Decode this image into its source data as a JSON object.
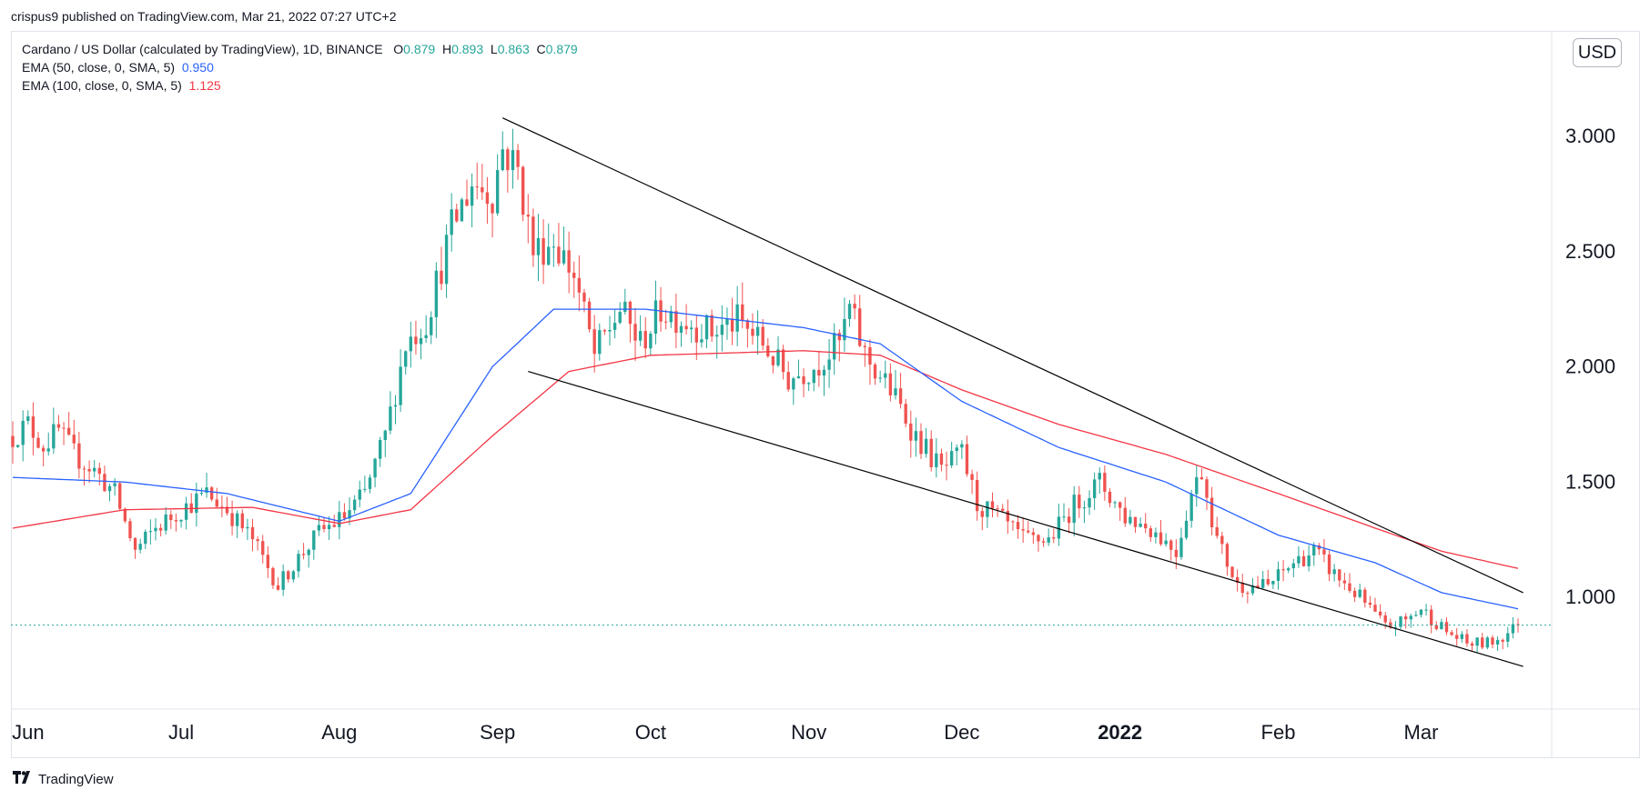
{
  "publish_line": "crispus9 published on TradingView.com, Mar 21, 2022 07:27 UTC+2",
  "legend": {
    "symbol": "Cardano / US Dollar (calculated by TradingView), 1D, BINANCE",
    "o_label": "O",
    "o_value": "0.879",
    "h_label": "H",
    "h_value": "0.893",
    "l_label": "L",
    "l_value": "0.863",
    "c_label": "C",
    "c_value": "0.879",
    "ema50_label": "EMA (50, close, 0, SMA, 5)",
    "ema50_value": "0.950",
    "ema100_label": "EMA (100, close, 0, SMA, 5)",
    "ema100_value": "1.125"
  },
  "currency_badge": "USD",
  "footer_brand": "TradingView",
  "colors": {
    "up": "#26a69a",
    "down": "#ef5350",
    "ema50": "#2962ff",
    "ema100": "#f23645",
    "trendline": "#000000",
    "last_price": "#26a69a"
  },
  "chart_data": {
    "type": "candlestick",
    "y_ticks": [
      "3.000",
      "2.500",
      "2.000",
      "1.500",
      "1.000"
    ],
    "y_tick_values": [
      3.0,
      2.5,
      2.0,
      1.5,
      1.0
    ],
    "ylim": [
      0.62,
      3.5
    ],
    "x_labels": [
      "Jun",
      "Jul",
      "Aug",
      "Sep",
      "Oct",
      "Nov",
      "Dec",
      "2022",
      "Feb",
      "Mar"
    ],
    "x_label_dates": [
      "2021-06-01",
      "2021-07-01",
      "2021-08-01",
      "2021-09-01",
      "2021-10-01",
      "2021-11-01",
      "2021-12-01",
      "2022-01-01",
      "2022-02-01",
      "2022-03-01"
    ],
    "bold_x_labels": [
      "2022"
    ],
    "date_range": [
      "2021-05-29",
      "2022-03-20"
    ],
    "last_price": 0.879,
    "close_anchors": [
      [
        "2021-05-29",
        1.7
      ],
      [
        "2021-06-01",
        1.75
      ],
      [
        "2021-06-04",
        1.66
      ],
      [
        "2021-06-07",
        1.72
      ],
      [
        "2021-06-10",
        1.62
      ],
      [
        "2021-06-14",
        1.55
      ],
      [
        "2021-06-18",
        1.45
      ],
      [
        "2021-06-22",
        1.2
      ],
      [
        "2021-06-26",
        1.3
      ],
      [
        "2021-07-01",
        1.38
      ],
      [
        "2021-07-06",
        1.45
      ],
      [
        "2021-07-10",
        1.38
      ],
      [
        "2021-07-15",
        1.25
      ],
      [
        "2021-07-20",
        1.05
      ],
      [
        "2021-07-24",
        1.17
      ],
      [
        "2021-07-28",
        1.28
      ],
      [
        "2021-08-02",
        1.35
      ],
      [
        "2021-08-06",
        1.45
      ],
      [
        "2021-08-10",
        1.7
      ],
      [
        "2021-08-14",
        2.1
      ],
      [
        "2021-08-18",
        2.2
      ],
      [
        "2021-08-23",
        2.6
      ],
      [
        "2021-08-27",
        2.8
      ],
      [
        "2021-08-31",
        2.75
      ],
      [
        "2021-09-02",
        2.95
      ],
      [
        "2021-09-05",
        2.85
      ],
      [
        "2021-09-08",
        2.5
      ],
      [
        "2021-09-12",
        2.55
      ],
      [
        "2021-09-16",
        2.4
      ],
      [
        "2021-09-20",
        2.05
      ],
      [
        "2021-09-25",
        2.25
      ],
      [
        "2021-09-29",
        2.1
      ],
      [
        "2021-10-03",
        2.25
      ],
      [
        "2021-10-08",
        2.2
      ],
      [
        "2021-10-13",
        2.15
      ],
      [
        "2021-10-18",
        2.2
      ],
      [
        "2021-10-23",
        2.1
      ],
      [
        "2021-10-28",
        1.95
      ],
      [
        "2021-11-02",
        2.0
      ],
      [
        "2021-11-07",
        2.1
      ],
      [
        "2021-11-09",
        2.25
      ],
      [
        "2021-11-12",
        2.05
      ],
      [
        "2021-11-17",
        1.9
      ],
      [
        "2021-11-22",
        1.7
      ],
      [
        "2021-11-27",
        1.55
      ],
      [
        "2021-12-01",
        1.62
      ],
      [
        "2021-12-04",
        1.4
      ],
      [
        "2021-12-08",
        1.35
      ],
      [
        "2021-12-13",
        1.25
      ],
      [
        "2021-12-18",
        1.25
      ],
      [
        "2021-12-23",
        1.4
      ],
      [
        "2021-12-28",
        1.5
      ],
      [
        "2022-01-02",
        1.35
      ],
      [
        "2022-01-07",
        1.3
      ],
      [
        "2022-01-12",
        1.2
      ],
      [
        "2022-01-15",
        1.45
      ],
      [
        "2022-01-17",
        1.55
      ],
      [
        "2022-01-20",
        1.25
      ],
      [
        "2022-01-24",
        1.05
      ],
      [
        "2022-01-30",
        1.05
      ],
      [
        "2022-02-04",
        1.15
      ],
      [
        "2022-02-08",
        1.2
      ],
      [
        "2022-02-12",
        1.1
      ],
      [
        "2022-02-17",
        1.0
      ],
      [
        "2022-02-22",
        0.87
      ],
      [
        "2022-02-26",
        0.9
      ],
      [
        "2022-03-01",
        0.95
      ],
      [
        "2022-03-06",
        0.85
      ],
      [
        "2022-03-10",
        0.8
      ],
      [
        "2022-03-14",
        0.8
      ],
      [
        "2022-03-17",
        0.83
      ],
      [
        "2022-03-20",
        0.879
      ]
    ],
    "ema50_anchors": [
      [
        "2021-05-29",
        1.52
      ],
      [
        "2021-06-20",
        1.5
      ],
      [
        "2021-07-10",
        1.45
      ],
      [
        "2021-08-01",
        1.33
      ],
      [
        "2021-08-15",
        1.45
      ],
      [
        "2021-08-31",
        2.0
      ],
      [
        "2021-09-12",
        2.25
      ],
      [
        "2021-09-30",
        2.25
      ],
      [
        "2021-10-31",
        2.17
      ],
      [
        "2021-11-15",
        2.1
      ],
      [
        "2021-12-01",
        1.85
      ],
      [
        "2021-12-20",
        1.65
      ],
      [
        "2022-01-10",
        1.5
      ],
      [
        "2022-02-01",
        1.27
      ],
      [
        "2022-02-20",
        1.15
      ],
      [
        "2022-03-05",
        1.02
      ],
      [
        "2022-03-20",
        0.95
      ]
    ],
    "ema100_anchors": [
      [
        "2021-05-29",
        1.3
      ],
      [
        "2021-06-20",
        1.38
      ],
      [
        "2021-07-15",
        1.39
      ],
      [
        "2021-08-01",
        1.32
      ],
      [
        "2021-08-15",
        1.38
      ],
      [
        "2021-08-31",
        1.7
      ],
      [
        "2021-09-15",
        1.98
      ],
      [
        "2021-10-01",
        2.05
      ],
      [
        "2021-10-31",
        2.07
      ],
      [
        "2021-11-15",
        2.05
      ],
      [
        "2021-12-01",
        1.9
      ],
      [
        "2021-12-20",
        1.75
      ],
      [
        "2022-01-10",
        1.62
      ],
      [
        "2022-02-01",
        1.45
      ],
      [
        "2022-02-20",
        1.3
      ],
      [
        "2022-03-05",
        1.2
      ],
      [
        "2022-03-20",
        1.125
      ]
    ],
    "trendlines": [
      {
        "name": "upper",
        "from": [
          "2021-09-02",
          3.08
        ],
        "to": [
          "2022-03-21",
          1.02
        ]
      },
      {
        "name": "lower",
        "from": [
          "2021-09-07",
          1.98
        ],
        "to": [
          "2022-03-21",
          0.7
        ]
      }
    ]
  }
}
